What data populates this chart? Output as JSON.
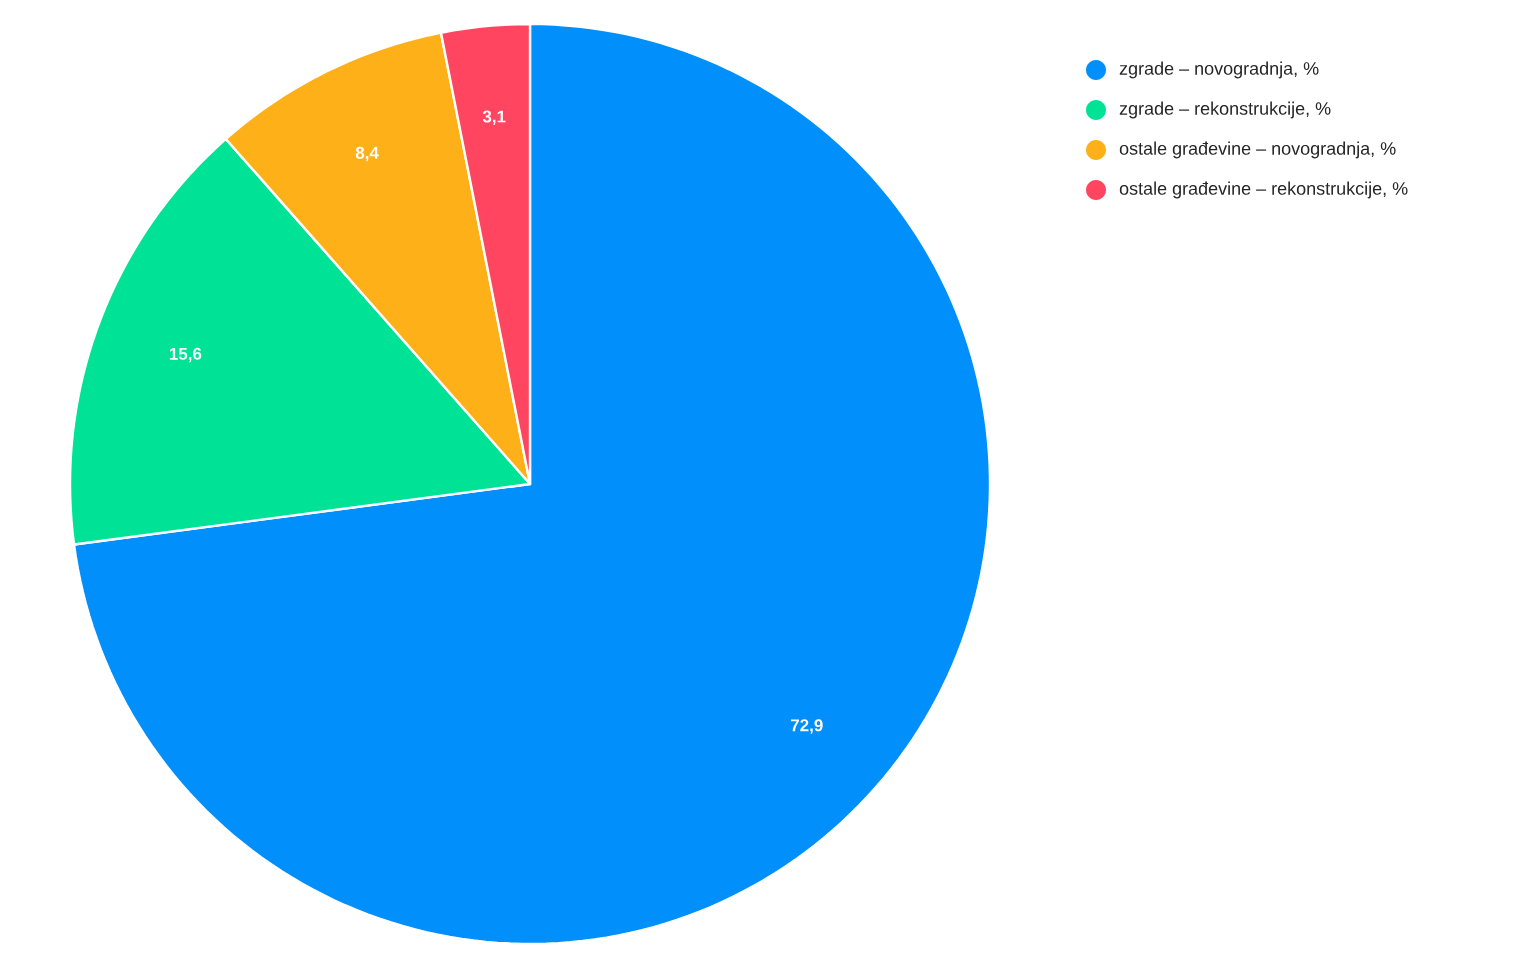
{
  "chart_data": {
    "type": "pie",
    "categories": [
      "zgrade – novogradnja, %",
      "zgrade – rekonstrukcije, %",
      "ostale građevine – novogradnja, %",
      "ostale građevine – rekonstrukcije, %"
    ],
    "values": [
      72.9,
      15.6,
      8.4,
      3.1
    ],
    "colors": [
      "#008ffb",
      "#00e396",
      "#feb019",
      "#ff4560"
    ],
    "value_labels": [
      "72,9",
      "15,6",
      "8,4",
      "3,1"
    ],
    "legend": "top right"
  }
}
